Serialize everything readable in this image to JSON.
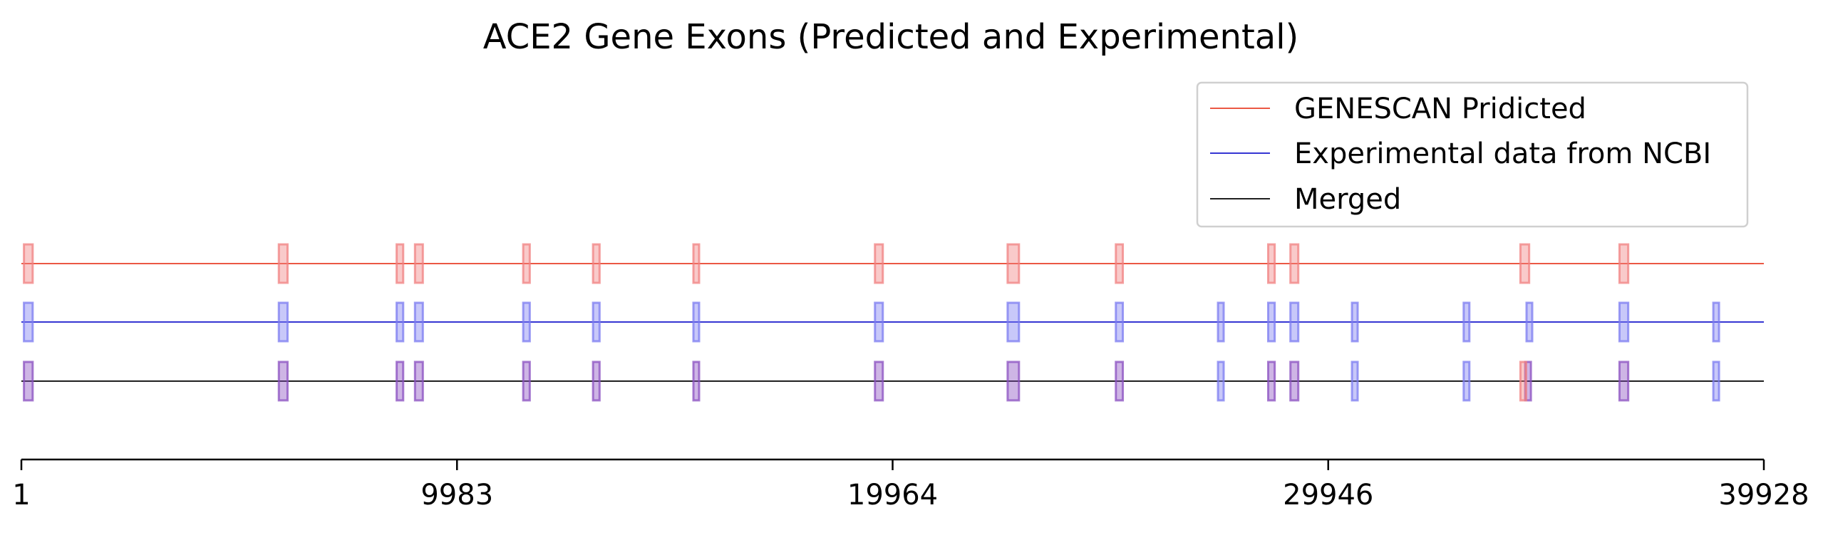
{
  "chart_data": {
    "type": "track",
    "title": "ACE2 Gene Exons (Predicted and Experimental)",
    "xlim": [
      1,
      39928
    ],
    "xticks": [
      "1",
      "9983",
      "19964",
      "29946",
      "39928"
    ],
    "xlabel": "",
    "ylabel": "",
    "grid": false,
    "legend_placement": "top-right",
    "series": [
      {
        "name": "GENESCAN Pridicted",
        "line_color": "#e8402a",
        "fill_color": "#f08080",
        "exons": [
          [
            60,
            260
          ],
          [
            5900,
            6100
          ],
          [
            8600,
            8750
          ],
          [
            9020,
            9200
          ],
          [
            11500,
            11650
          ],
          [
            13100,
            13250
          ],
          [
            15400,
            15520
          ],
          [
            19560,
            19740
          ],
          [
            22600,
            22860
          ],
          [
            25080,
            25240
          ],
          [
            28570,
            28720
          ],
          [
            29080,
            29260
          ],
          [
            34350,
            34550
          ],
          [
            36620,
            36820
          ]
        ]
      },
      {
        "name": "Experimental data from NCBI",
        "line_color": "#1a1acd",
        "fill_color": "#7b7bf0",
        "exons": [
          [
            60,
            260
          ],
          [
            5900,
            6100
          ],
          [
            8600,
            8750
          ],
          [
            9020,
            9200
          ],
          [
            11500,
            11650
          ],
          [
            13100,
            13250
          ],
          [
            15400,
            15520
          ],
          [
            19560,
            19740
          ],
          [
            22600,
            22860
          ],
          [
            25080,
            25240
          ],
          [
            27420,
            27520
          ],
          [
            28570,
            28720
          ],
          [
            29080,
            29260
          ],
          [
            30490,
            30580
          ],
          [
            33050,
            33160
          ],
          [
            34490,
            34600
          ],
          [
            36620,
            36820
          ],
          [
            38770,
            38880
          ]
        ]
      },
      {
        "name": "Merged",
        "line_color": "#000000",
        "fill_color": "#8a4fc0",
        "exons": [
          [
            60,
            260
          ],
          [
            5900,
            6100
          ],
          [
            8600,
            8750
          ],
          [
            9020,
            9200
          ],
          [
            11500,
            11650
          ],
          [
            13100,
            13250
          ],
          [
            15400,
            15520
          ],
          [
            19560,
            19740
          ],
          [
            22600,
            22860
          ],
          [
            25080,
            25240
          ],
          [
            28570,
            28720
          ],
          [
            29080,
            29260
          ],
          [
            34460,
            34580
          ],
          [
            36620,
            36820
          ]
        ],
        "experimental_only_exons": [
          [
            27420,
            27520
          ],
          [
            30490,
            30580
          ],
          [
            33050,
            33160
          ],
          [
            38770,
            38880
          ]
        ],
        "predicted_only_exons": [
          [
            34350,
            34460
          ]
        ]
      }
    ]
  }
}
